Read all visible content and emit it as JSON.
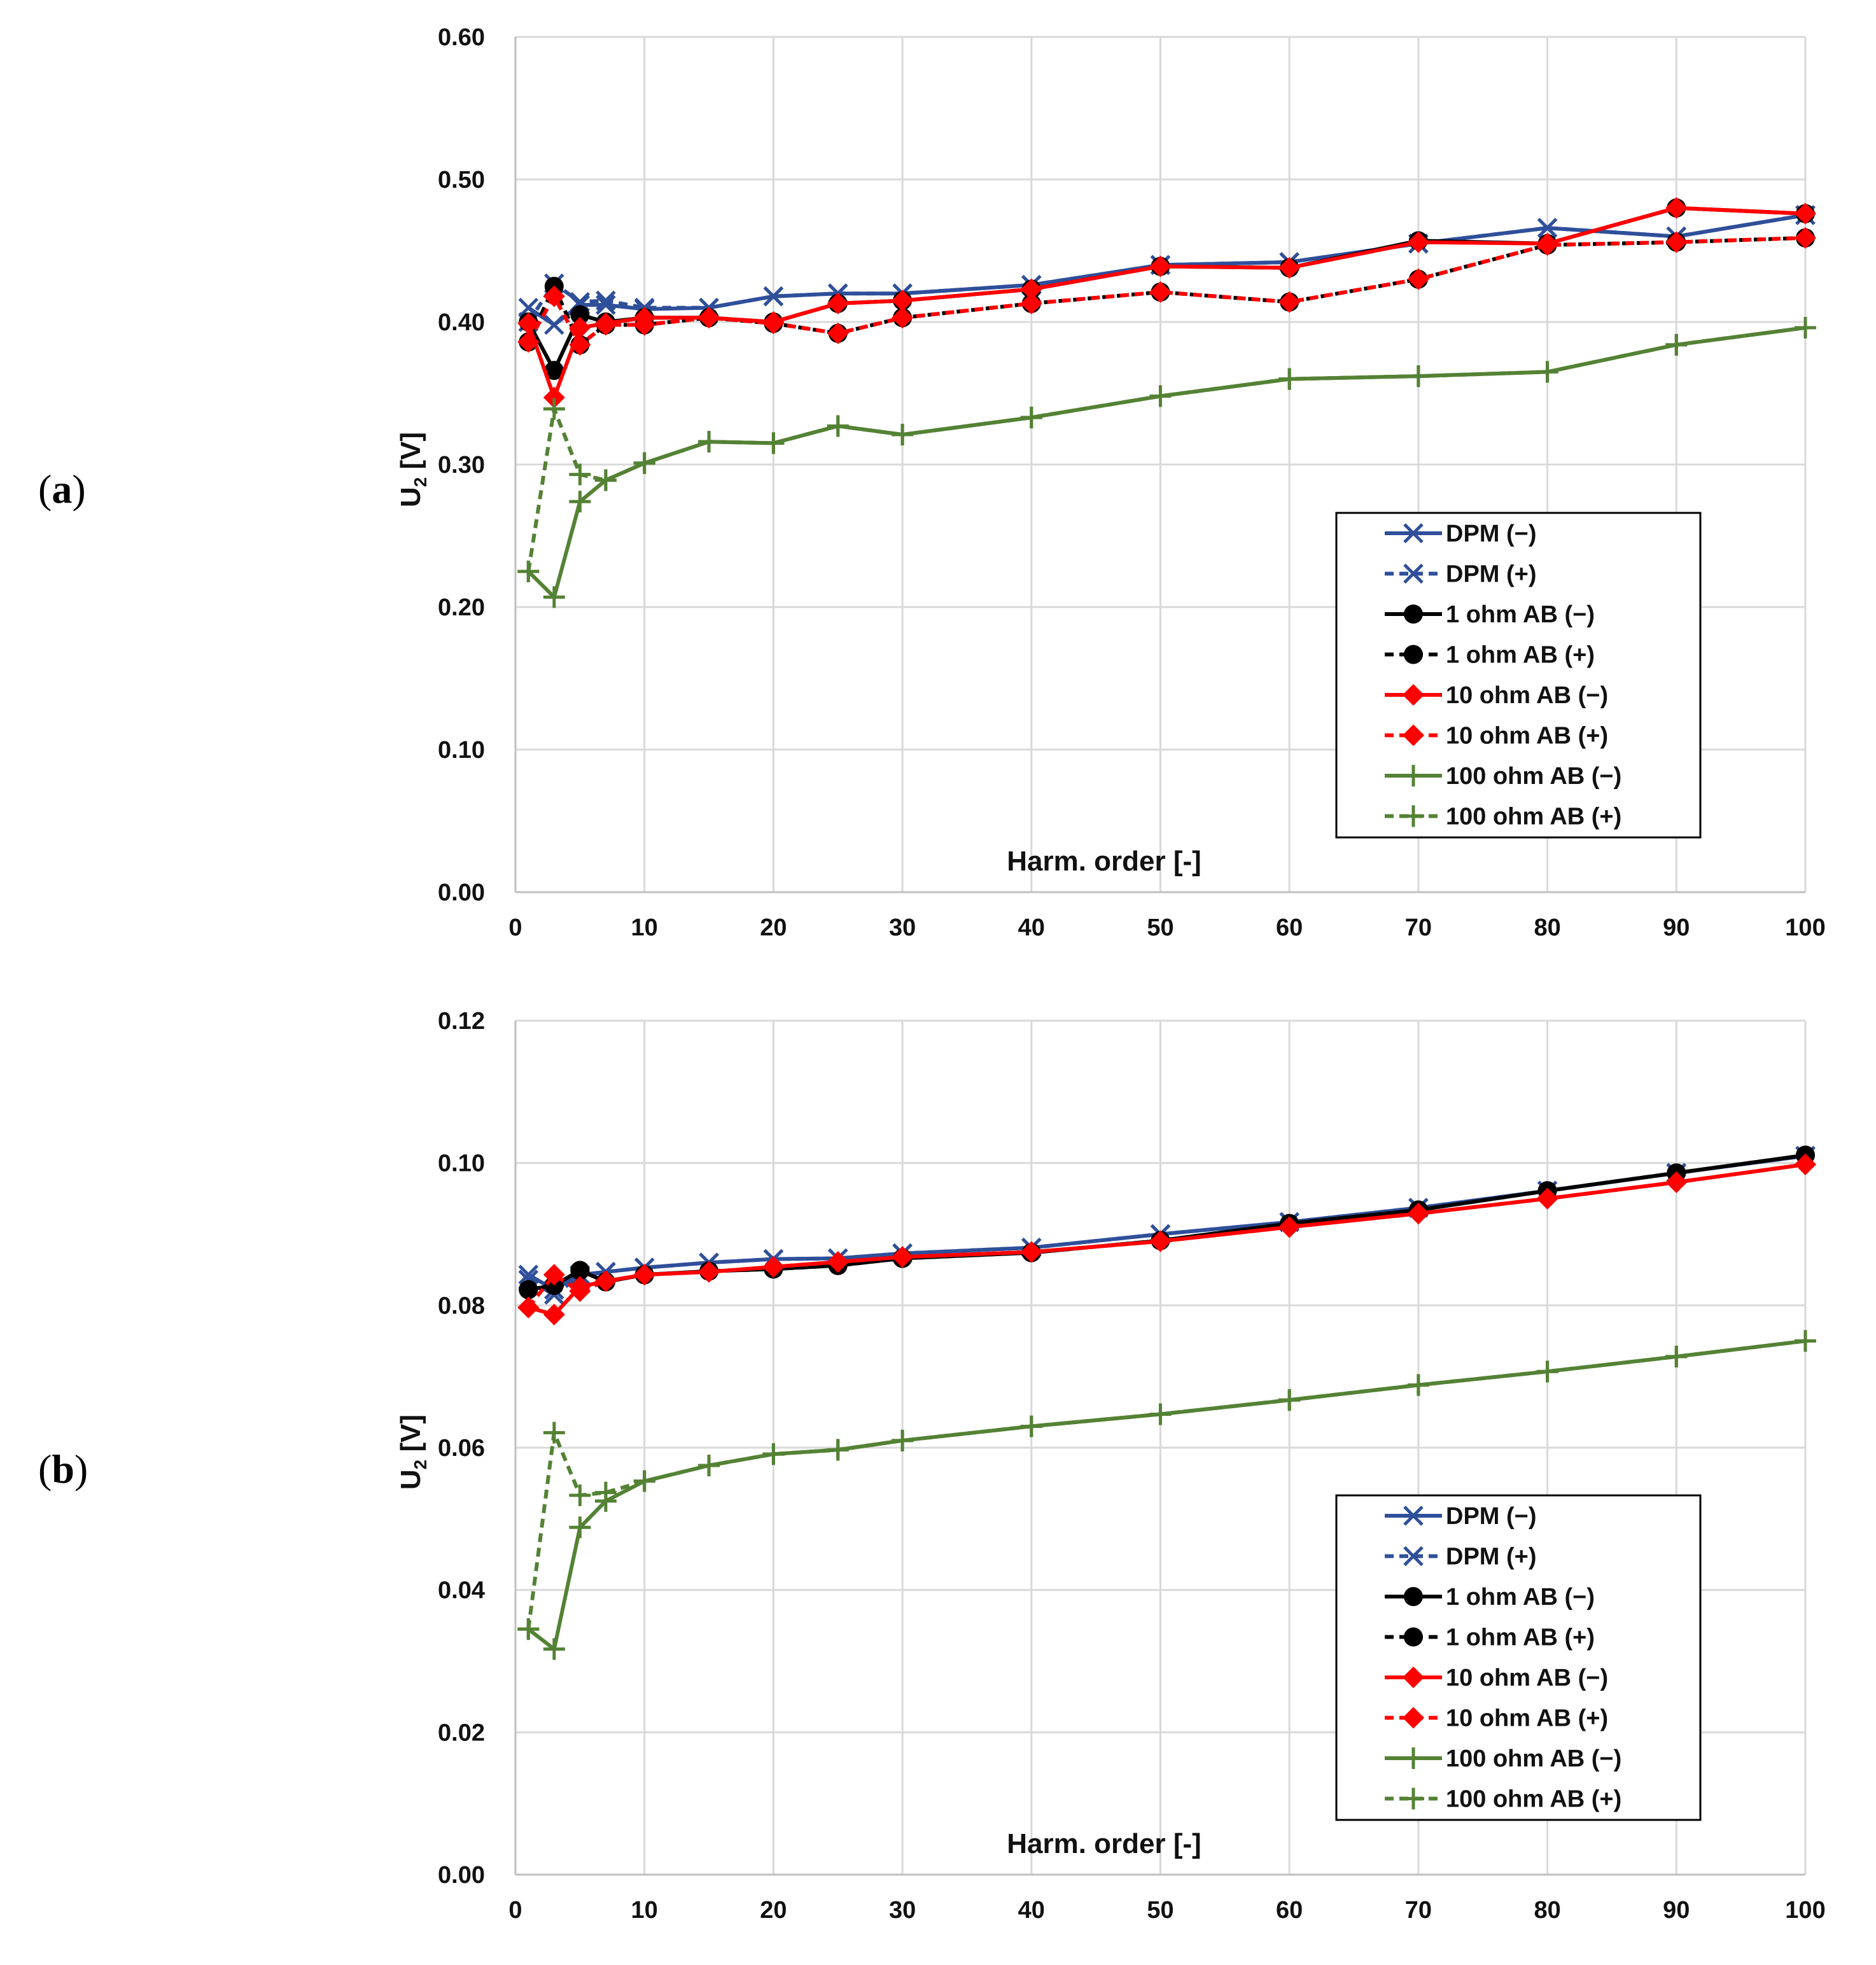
{
  "chart_data": [
    {
      "panel": "(a)",
      "label_parts": {
        "open": "(",
        "letter": "a",
        "close": ")"
      },
      "type": "line",
      "xlabel": "Harm. order [-]",
      "ylabel_main": "U",
      "ylabel_sub": "2",
      "ylabel_unit": " [V]",
      "xlim": [
        0,
        100
      ],
      "ylim": [
        0,
        0.6
      ],
      "xticks": [
        0,
        10,
        20,
        30,
        40,
        50,
        60,
        70,
        80,
        90,
        100
      ],
      "yticks": [
        0.0,
        0.1,
        0.2,
        0.3,
        0.4,
        0.5,
        0.6
      ],
      "ytick_labels": [
        "0.00",
        "0.10",
        "0.20",
        "0.30",
        "0.40",
        "0.50",
        "0.60"
      ],
      "grid": true,
      "legend_position": "lower-right",
      "x": [
        1,
        3,
        5,
        7,
        10,
        15,
        20,
        25,
        30,
        40,
        50,
        60,
        70,
        80,
        90,
        100
      ],
      "series": [
        {
          "name": "DPM (−)",
          "color": "#2F4F9A",
          "dash": "solid",
          "marker": "x",
          "values": [
            0.41,
            0.398,
            0.412,
            0.412,
            0.409,
            0.41,
            0.418,
            0.42,
            0.42,
            0.426,
            0.44,
            0.442,
            0.455,
            0.466,
            0.46,
            0.475
          ]
        },
        {
          "name": "DPM (+)",
          "color": "#2F4F9A",
          "dash": "dashed",
          "marker": "x",
          "values": [
            0.4,
            0.427,
            0.414,
            0.415,
            0.41,
            0.41,
            0.418,
            0.42,
            0.42,
            0.426,
            0.44,
            0.442,
            0.455,
            0.466,
            0.46,
            0.475
          ]
        },
        {
          "name": "1 ohm AB (−)",
          "color": "#000000",
          "dash": "solid",
          "marker": "circle",
          "values": [
            0.4,
            0.366,
            0.405,
            0.4,
            0.403,
            0.403,
            0.4,
            0.413,
            0.415,
            0.423,
            0.439,
            0.438,
            0.457,
            0.455,
            0.48,
            0.476
          ]
        },
        {
          "name": "1 ohm AB (+)",
          "color": "#000000",
          "dash": "dashed",
          "marker": "circle",
          "values": [
            0.386,
            0.425,
            0.384,
            0.398,
            0.398,
            0.403,
            0.399,
            0.392,
            0.403,
            0.413,
            0.421,
            0.414,
            0.43,
            0.454,
            0.456,
            0.459
          ]
        },
        {
          "name": "10 ohm AB (−)",
          "color": "#FF0000",
          "dash": "solid",
          "marker": "diamond",
          "values": [
            0.399,
            0.347,
            0.396,
            0.399,
            0.403,
            0.403,
            0.4,
            0.413,
            0.415,
            0.423,
            0.439,
            0.438,
            0.456,
            0.455,
            0.48,
            0.476
          ]
        },
        {
          "name": "10 ohm AB (+)",
          "color": "#FF0000",
          "dash": "dashed",
          "marker": "diamond",
          "values": [
            0.386,
            0.418,
            0.384,
            0.398,
            0.398,
            0.403,
            0.399,
            0.392,
            0.403,
            0.413,
            0.421,
            0.414,
            0.43,
            0.454,
            0.456,
            0.459
          ]
        },
        {
          "name": "100 ohm AB (−)",
          "color": "#548235",
          "dash": "solid",
          "marker": "plus",
          "values": [
            0.225,
            0.207,
            0.274,
            0.289,
            0.301,
            0.316,
            0.315,
            0.327,
            0.321,
            0.333,
            0.348,
            0.36,
            0.362,
            0.365,
            0.384,
            0.396
          ]
        },
        {
          "name": "100 ohm AB (+)",
          "color": "#548235",
          "dash": "dashed",
          "marker": "plus",
          "values": [
            0.225,
            0.339,
            0.293,
            0.289,
            0.301,
            0.316,
            0.315,
            0.327,
            0.321,
            0.333,
            0.348,
            0.36,
            0.362,
            0.365,
            0.384,
            0.396
          ]
        }
      ]
    },
    {
      "panel": "(b)",
      "label_parts": {
        "open": "(",
        "letter": "b",
        "close": ")"
      },
      "type": "line",
      "xlabel": "Harm. order [-]",
      "ylabel_main": "U",
      "ylabel_sub": "2",
      "ylabel_unit": " [V]",
      "xlim": [
        0,
        100
      ],
      "ylim": [
        0,
        0.12
      ],
      "xticks": [
        0,
        10,
        20,
        30,
        40,
        50,
        60,
        70,
        80,
        90,
        100
      ],
      "yticks": [
        0.0,
        0.02,
        0.04,
        0.06,
        0.08,
        0.1,
        0.12
      ],
      "ytick_labels": [
        "0.00",
        "0.02",
        "0.04",
        "0.06",
        "0.08",
        "0.10",
        "0.12"
      ],
      "grid": true,
      "legend_position": "lower-right",
      "x": [
        1,
        3,
        5,
        7,
        10,
        15,
        20,
        25,
        30,
        40,
        50,
        60,
        70,
        80,
        90,
        100
      ],
      "series": [
        {
          "name": "DPM (−)",
          "color": "#2F4F9A",
          "dash": "solid",
          "marker": "x",
          "values": [
            0.0843,
            0.0822,
            0.0843,
            0.0847,
            0.0853,
            0.086,
            0.0865,
            0.0866,
            0.0873,
            0.0881,
            0.09,
            0.0917,
            0.0937,
            0.0961,
            0.0986,
            0.101
          ]
        },
        {
          "name": "DPM (+)",
          "color": "#2F4F9A",
          "dash": "dashed",
          "marker": "x",
          "values": [
            0.0836,
            0.0815,
            0.0841,
            0.0847,
            0.0853,
            0.086,
            0.0865,
            0.0866,
            0.0873,
            0.0881,
            0.09,
            0.0917,
            0.0937,
            0.0961,
            0.0986,
            0.101
          ]
        },
        {
          "name": "1 ohm AB (−)",
          "color": "#000000",
          "dash": "solid",
          "marker": "circle",
          "values": [
            0.0822,
            0.0828,
            0.0849,
            0.0833,
            0.0843,
            0.0848,
            0.0851,
            0.0856,
            0.0866,
            0.0874,
            0.0891,
            0.0915,
            0.0934,
            0.0961,
            0.0986,
            0.1011
          ]
        },
        {
          "name": "1 ohm AB (+)",
          "color": "#000000",
          "dash": "dashed",
          "marker": "circle",
          "values": [
            0.0822,
            0.0828,
            0.0849,
            0.0833,
            0.0843,
            0.0848,
            0.0851,
            0.0856,
            0.0866,
            0.0874,
            0.0891,
            0.0915,
            0.0934,
            0.0961,
            0.0986,
            0.1011
          ]
        },
        {
          "name": "10 ohm AB (−)",
          "color": "#FF0000",
          "dash": "solid",
          "marker": "diamond",
          "values": [
            0.0797,
            0.0787,
            0.0826,
            0.0834,
            0.0843,
            0.0847,
            0.0854,
            0.0861,
            0.0868,
            0.0875,
            0.089,
            0.091,
            0.0929,
            0.095,
            0.0973,
            0.0998
          ]
        },
        {
          "name": "10 ohm AB (+)",
          "color": "#FF0000",
          "dash": "dashed",
          "marker": "diamond",
          "values": [
            0.0797,
            0.0843,
            0.082,
            0.0834,
            0.0843,
            0.0847,
            0.0854,
            0.0861,
            0.0868,
            0.0875,
            0.089,
            0.091,
            0.0929,
            0.095,
            0.0973,
            0.0998
          ]
        },
        {
          "name": "100 ohm AB (−)",
          "color": "#548235",
          "dash": "solid",
          "marker": "plus",
          "values": [
            0.0345,
            0.0317,
            0.0488,
            0.0525,
            0.0553,
            0.0575,
            0.0591,
            0.0597,
            0.061,
            0.063,
            0.0647,
            0.0667,
            0.0688,
            0.0707,
            0.0728,
            0.075
          ]
        },
        {
          "name": "100 ohm AB (+)",
          "color": "#548235",
          "dash": "dashed",
          "marker": "plus",
          "values": [
            0.0345,
            0.0621,
            0.0533,
            0.0537,
            0.0553,
            0.0575,
            0.0591,
            0.0597,
            0.061,
            0.063,
            0.0647,
            0.0667,
            0.0688,
            0.0707,
            0.0728,
            0.075
          ]
        }
      ]
    }
  ]
}
